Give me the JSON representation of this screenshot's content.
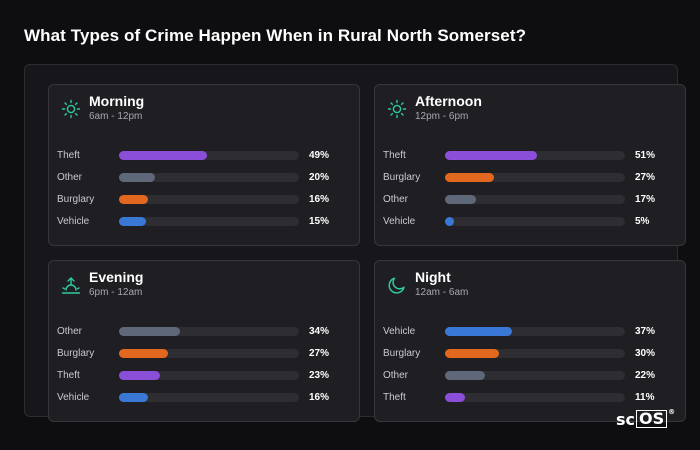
{
  "title": "What Types of Crime Happen When in Rural North Somerset?",
  "colors": {
    "Theft": "#8b4ed9",
    "Other": "#5f6878",
    "Burglary": "#e2681f",
    "Vehicle": "#3a78d6",
    "icon": "#2ecc9a"
  },
  "panels": [
    {
      "title": "Morning",
      "subtitle": "6am - 12pm",
      "icon": "sun-icon",
      "rows": [
        {
          "label": "Theft",
          "value": 49,
          "display": "49%"
        },
        {
          "label": "Other",
          "value": 20,
          "display": "20%"
        },
        {
          "label": "Burglary",
          "value": 16,
          "display": "16%"
        },
        {
          "label": "Vehicle",
          "value": 15,
          "display": "15%"
        }
      ]
    },
    {
      "title": "Afternoon",
      "subtitle": "12pm - 6pm",
      "icon": "sun-icon",
      "rows": [
        {
          "label": "Theft",
          "value": 51,
          "display": "51%"
        },
        {
          "label": "Burglary",
          "value": 27,
          "display": "27%"
        },
        {
          "label": "Other",
          "value": 17,
          "display": "17%"
        },
        {
          "label": "Vehicle",
          "value": 5,
          "display": "5%"
        }
      ]
    },
    {
      "title": "Evening",
      "subtitle": "6pm - 12am",
      "icon": "sunset-icon",
      "rows": [
        {
          "label": "Other",
          "value": 34,
          "display": "34%"
        },
        {
          "label": "Burglary",
          "value": 27,
          "display": "27%"
        },
        {
          "label": "Theft",
          "value": 23,
          "display": "23%"
        },
        {
          "label": "Vehicle",
          "value": 16,
          "display": "16%"
        }
      ]
    },
    {
      "title": "Night",
      "subtitle": "12am - 6am",
      "icon": "moon-icon",
      "rows": [
        {
          "label": "Vehicle",
          "value": 37,
          "display": "37%"
        },
        {
          "label": "Burglary",
          "value": 30,
          "display": "30%"
        },
        {
          "label": "Other",
          "value": 22,
          "display": "22%"
        },
        {
          "label": "Theft",
          "value": 11,
          "display": "11%"
        }
      ]
    }
  ],
  "chart_data": {
    "type": "bar",
    "title": "What Types of Crime Happen When in Rural North Somerset?",
    "orientation": "horizontal",
    "xlim": [
      0,
      100
    ],
    "groups": [
      {
        "name": "Morning",
        "categories": [
          "Theft",
          "Other",
          "Burglary",
          "Vehicle"
        ],
        "values": [
          49,
          20,
          16,
          15
        ]
      },
      {
        "name": "Afternoon",
        "categories": [
          "Theft",
          "Burglary",
          "Other",
          "Vehicle"
        ],
        "values": [
          51,
          27,
          17,
          5
        ]
      },
      {
        "name": "Evening",
        "categories": [
          "Other",
          "Burglary",
          "Theft",
          "Vehicle"
        ],
        "values": [
          34,
          27,
          23,
          16
        ]
      },
      {
        "name": "Night",
        "categories": [
          "Vehicle",
          "Burglary",
          "Other",
          "Theft"
        ],
        "values": [
          37,
          30,
          22,
          11
        ]
      }
    ]
  },
  "logo": {
    "text_left": "sc",
    "text_box": "OS",
    "mark": "®"
  }
}
